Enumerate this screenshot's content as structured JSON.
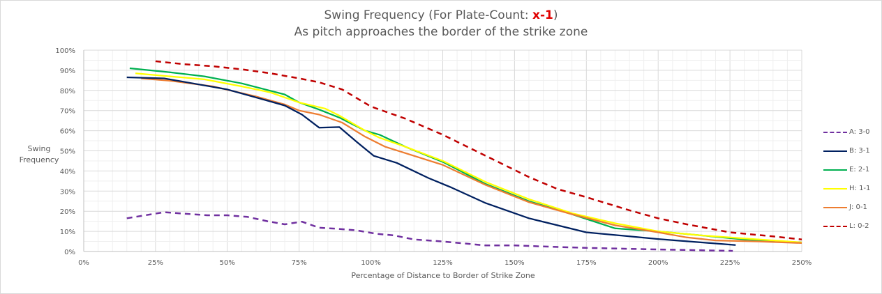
{
  "chart_data": {
    "type": "line",
    "title": "Swing Frequency (For Plate-Count: x-1)",
    "title_prefix": "Swing Frequency (For Plate-Count: ",
    "title_highlight": "x-1",
    "title_suffix": ")",
    "subtitle": "As pitch approaches the border of the strike zone",
    "xlabel": "Percentage of Distance to Border of Strike Zone",
    "ylabel_line1": "Swing",
    "ylabel_line2": "Frequency",
    "xlim": [
      0,
      250
    ],
    "ylim": [
      0,
      100
    ],
    "x_ticks": [
      "0%",
      "25%",
      "50%",
      "75%",
      "100%",
      "125%",
      "150%",
      "175%",
      "200%",
      "225%",
      "250%"
    ],
    "y_ticks": [
      "0%",
      "10%",
      "20%",
      "30%",
      "40%",
      "50%",
      "60%",
      "70%",
      "80%",
      "90%",
      "100%"
    ],
    "grid": true,
    "legend_position": "right",
    "series": [
      {
        "name": "A: 3-0",
        "color": "#7030a0",
        "dashed": true,
        "x": [
          15,
          28,
          35,
          43,
          50,
          57,
          64,
          70,
          76,
          82,
          88,
          95,
          102,
          108,
          115,
          125,
          140,
          150,
          160,
          175,
          190,
          200,
          212,
          226
        ],
        "y": [
          16.5,
          19.5,
          18.8,
          18,
          18,
          17.2,
          15,
          13.5,
          14.8,
          11.8,
          11.3,
          10.5,
          8.8,
          8,
          6,
          5,
          3,
          3,
          2.5,
          1.8,
          1.3,
          1,
          0.7,
          0.3
        ]
      },
      {
        "name": "B: 3-1",
        "color": "#002060",
        "dashed": false,
        "x": [
          15,
          28,
          38,
          50,
          60,
          70,
          76,
          82,
          89,
          95,
          101,
          109,
          120,
          128,
          140,
          155,
          175,
          200,
          227
        ],
        "y": [
          86.5,
          86,
          83.5,
          80.5,
          76.5,
          72.5,
          68,
          61.5,
          61.8,
          54.5,
          47.5,
          44,
          36.5,
          31.8,
          24,
          16.5,
          9.5,
          6.2,
          3.2
        ]
      },
      {
        "name": "E: 2-1",
        "color": "#00b050",
        "dashed": false,
        "x": [
          16,
          30,
          42,
          55,
          70,
          75,
          82,
          89,
          98,
          103,
          112,
          125,
          140,
          155,
          170,
          185,
          200,
          215,
          230,
          250
        ],
        "y": [
          91,
          89,
          87,
          83.5,
          78,
          74,
          70.5,
          66.5,
          60,
          58,
          52,
          44.5,
          33.5,
          25,
          18.5,
          11.5,
          10,
          8,
          6,
          4.5
        ]
      },
      {
        "name": "H: 1-1",
        "color": "#ffff00",
        "dashed": false,
        "x": [
          18,
          30,
          42,
          55,
          65,
          75,
          84,
          89,
          98,
          103,
          112,
          125,
          140,
          155,
          170,
          185,
          200,
          215,
          230,
          250
        ],
        "y": [
          88.5,
          87,
          85.5,
          82,
          79,
          74,
          71,
          67.5,
          60,
          56.5,
          52,
          45,
          34.5,
          26,
          19,
          14,
          10,
          8,
          6.5,
          4.5
        ]
      },
      {
        "name": "J: 0-1",
        "color": "#ed7d31",
        "dashed": false,
        "x": [
          20,
          30,
          45,
          60,
          70,
          75,
          82,
          90,
          98,
          105,
          115,
          125,
          140,
          155,
          170,
          185,
          200,
          210,
          220,
          235,
          250
        ],
        "y": [
          86,
          84.8,
          82,
          77,
          73,
          70,
          68,
          64,
          57,
          52,
          47.5,
          43,
          33,
          24.5,
          18.5,
          13,
          9.5,
          7,
          5.5,
          5,
          4.2
        ]
      },
      {
        "name": "L: 0-2",
        "color": "#c00000",
        "dashed": true,
        "x": [
          25,
          35,
          45,
          55,
          65,
          75,
          82,
          90,
          100,
          112,
          125,
          140,
          155,
          165,
          175,
          190,
          200,
          210,
          225,
          240,
          250
        ],
        "y": [
          94.5,
          93,
          92,
          90.5,
          88.5,
          86,
          84,
          80.5,
          72,
          66,
          58,
          47.5,
          37,
          31,
          27,
          20.5,
          16.5,
          13.5,
          9.5,
          7.5,
          6
        ]
      }
    ]
  }
}
